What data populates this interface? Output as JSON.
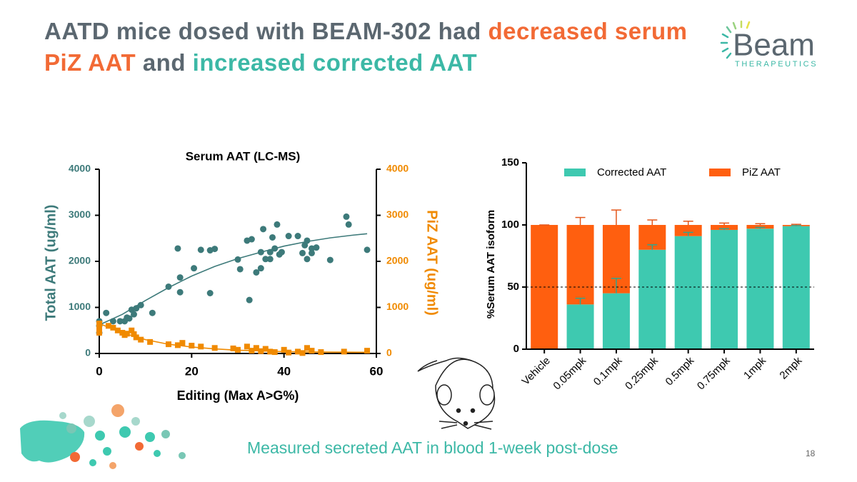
{
  "title_parts": [
    "AATD mice dosed with BEAM-302 had ",
    "decreased serum PiZ AAT",
    " and ",
    "increased corrected AAT"
  ],
  "logo": {
    "name": "Beam",
    "subtitle": "THERAPEUTICS"
  },
  "caption": "Measured secreted AAT in blood 1-week post-dose",
  "page_number": "18",
  "chart_data": [
    {
      "type": "scatter",
      "title": "Serum AAT (LC-MS)",
      "x_label": "Editing (Max A>G%)",
      "y_label": "Total AAT (ug/ml)",
      "y2_label": "PiZ AAT (ug/ml)",
      "xlim": [
        0,
        60
      ],
      "xticks": [
        0,
        20,
        40,
        60
      ],
      "ylim": [
        0,
        4000
      ],
      "yticks": [
        0,
        1000,
        2000,
        3000,
        4000
      ],
      "y2lim": [
        0,
        4000
      ],
      "y2ticks": [
        0,
        1000,
        2000,
        3000,
        4000
      ],
      "series": [
        {
          "color": "#3d7a7a",
          "marker": "circle",
          "axis": "y",
          "x": [
            0,
            0,
            0,
            1.5,
            3,
            4.5,
            5.5,
            6,
            6.5,
            7,
            7.5,
            8,
            9,
            11.5,
            15,
            17,
            17.5,
            17.5,
            20.5,
            22,
            24,
            24,
            25,
            30,
            30.5,
            32,
            32.5,
            33,
            34,
            35,
            35,
            35.5,
            36,
            37,
            37,
            37.5,
            38,
            38.5,
            39,
            39.5,
            41,
            43,
            44,
            44.5,
            45,
            45,
            46,
            46,
            47,
            50,
            53.5,
            54,
            58
          ],
          "values": [
            700,
            600,
            450,
            880,
            700,
            700,
            700,
            780,
            760,
            950,
            850,
            980,
            1050,
            880,
            1450,
            2280,
            1650,
            1330,
            1850,
            2250,
            1310,
            2240,
            2270,
            2040,
            1830,
            2450,
            1160,
            2480,
            1760,
            1850,
            2200,
            2700,
            2050,
            2050,
            2200,
            2520,
            2280,
            2800,
            2150,
            2200,
            2550,
            2550,
            2180,
            2350,
            2450,
            2050,
            2280,
            2180,
            2300,
            2030,
            2970,
            2800,
            2250
          ]
        },
        {
          "color": "#f08a00",
          "marker": "square",
          "axis": "y2",
          "x": [
            0,
            0,
            0,
            2,
            3,
            4,
            5,
            5.5,
            6,
            7,
            7.5,
            8,
            9,
            11,
            15,
            17,
            18,
            20,
            22,
            25,
            29,
            30,
            32,
            33,
            34,
            35,
            36,
            37,
            38,
            40,
            41,
            43,
            44,
            45,
            46,
            48,
            53,
            58
          ],
          "values": [
            650,
            550,
            450,
            600,
            560,
            500,
            450,
            400,
            430,
            500,
            420,
            350,
            300,
            250,
            200,
            180,
            230,
            170,
            150,
            120,
            110,
            80,
            150,
            60,
            120,
            50,
            100,
            40,
            30,
            80,
            20,
            40,
            10,
            120,
            60,
            30,
            40,
            60
          ]
        }
      ],
      "fits": [
        {
          "color": "#3d7a7a",
          "axis": "y",
          "x": [
            0,
            5,
            10,
            15,
            20,
            25,
            30,
            35,
            40,
            45,
            50,
            55,
            58
          ],
          "values": [
            620,
            850,
            1150,
            1430,
            1680,
            1890,
            2060,
            2200,
            2330,
            2430,
            2510,
            2570,
            2600
          ]
        },
        {
          "color": "#f08a00",
          "axis": "y2",
          "x": [
            0,
            5,
            10,
            15,
            20,
            25,
            30,
            40,
            50,
            58
          ],
          "values": [
            650,
            450,
            300,
            200,
            140,
            100,
            70,
            40,
            30,
            25
          ]
        }
      ]
    },
    {
      "type": "bar",
      "stacked": true,
      "y_label": "%Serum AAT isoform",
      "categories": [
        "Vehicle",
        "0.05mpk",
        "0.1mpk",
        "0.25mpk",
        "0.5mpk",
        "0.75mpk",
        "1mpk",
        "2mpk"
      ],
      "ylim": [
        0,
        150
      ],
      "yticks": [
        0,
        50,
        100,
        150
      ],
      "reference_line": 50,
      "series": [
        {
          "name": "Corrected AAT",
          "color": "#3ec9b0",
          "values": [
            0,
            36,
            45,
            80,
            91,
            96,
            97,
            99
          ],
          "errors": [
            0,
            5,
            12,
            4,
            3,
            1,
            1,
            0.5
          ]
        },
        {
          "name": "PiZ AAT",
          "color": "#ff5f0f",
          "values": [
            100,
            64,
            55,
            20,
            9,
            4,
            3,
            1
          ],
          "errors": [
            0,
            6,
            12,
            4,
            3,
            1.5,
            1,
            0.5
          ]
        }
      ]
    }
  ]
}
